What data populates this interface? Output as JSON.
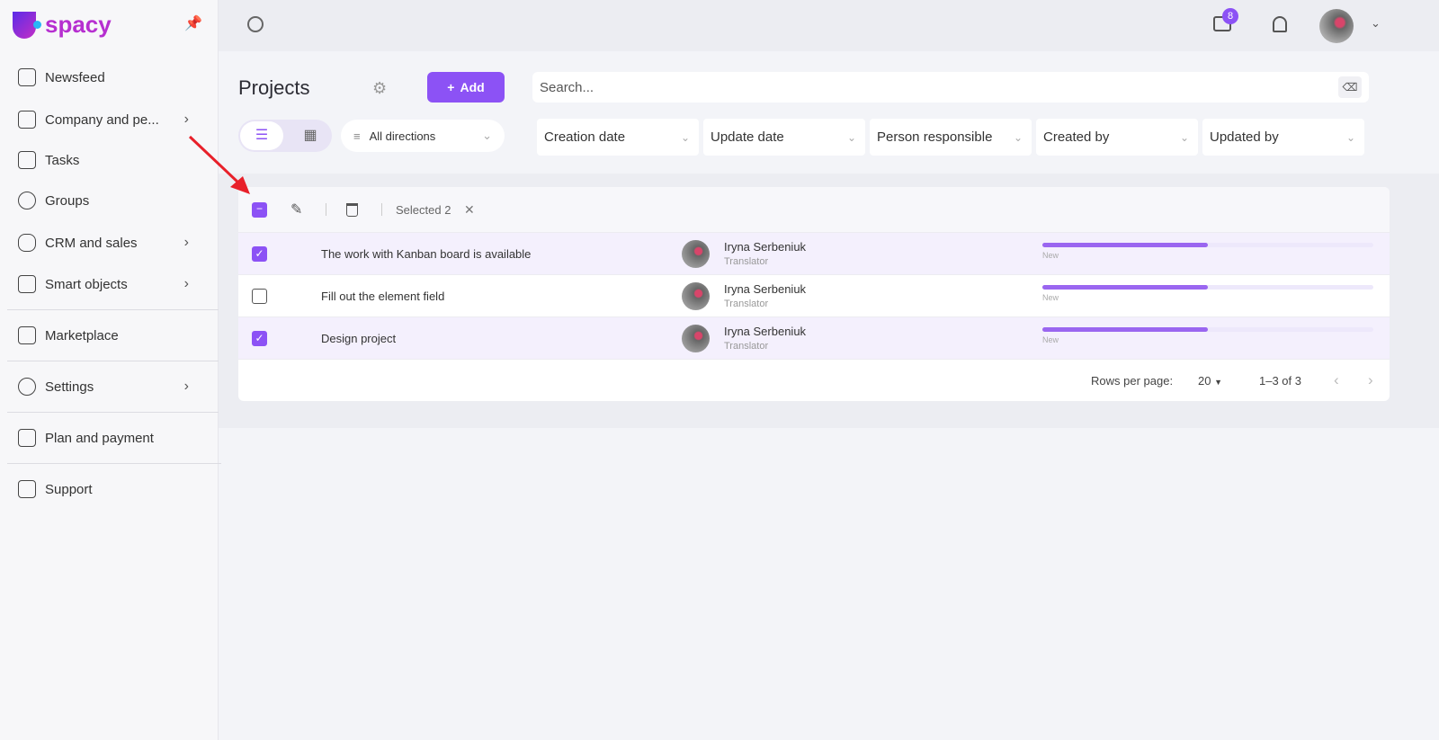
{
  "brand": {
    "logo": "Uspacy"
  },
  "sidebar": {
    "items": [
      {
        "label": "Newsfeed",
        "icon": "home-icon"
      },
      {
        "label": "Company and pe...",
        "icon": "building-icon",
        "chevron": true
      },
      {
        "label": "Tasks",
        "icon": "calendar-check-icon"
      },
      {
        "label": "Groups",
        "icon": "users-icon"
      },
      {
        "label": "CRM and sales",
        "icon": "database-icon",
        "chevron": true
      },
      {
        "label": "Smart objects",
        "icon": "scan-icon",
        "chevron": true
      },
      {
        "label": "Marketplace",
        "icon": "store-icon"
      },
      {
        "label": "Settings",
        "icon": "gear-icon",
        "chevron": true
      },
      {
        "label": "Plan and payment",
        "icon": "wallet-icon"
      },
      {
        "label": "Support",
        "icon": "help-icon"
      }
    ]
  },
  "topbar": {
    "messages_badge": "8"
  },
  "header": {
    "title": "Projects",
    "add_label": "Add",
    "search_placeholder": "Search...",
    "directions": "All directions",
    "filters": [
      "Creation date",
      "Update date",
      "Person responsible",
      "Created by",
      "Updated by"
    ]
  },
  "table": {
    "selected_label": "Selected 2",
    "rows": [
      {
        "name": "The work with Kanban board is available",
        "person": "Iryna Serbeniuk",
        "role": "Translator",
        "status": "New",
        "progress": 50,
        "checked": true
      },
      {
        "name": "Fill out the element field",
        "person": "Iryna Serbeniuk",
        "role": "Translator",
        "status": "New",
        "progress": 50,
        "checked": false
      },
      {
        "name": "Design project",
        "person": "Iryna Serbeniuk",
        "role": "Translator",
        "status": "New",
        "progress": 50,
        "checked": true
      }
    ],
    "rows_per_page_label": "Rows per page:",
    "rows_per_page": "20",
    "range": "1–3 of 3"
  },
  "colors": {
    "accent": "#8c52f5",
    "annotation_arrow": "#e8202a"
  }
}
